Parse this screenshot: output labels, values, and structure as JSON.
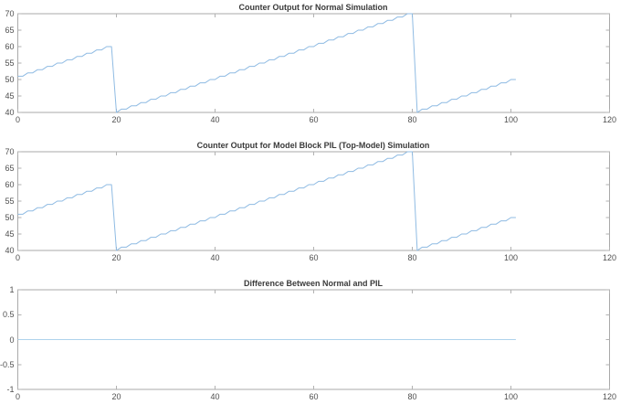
{
  "figure": {
    "background": "#ffffff",
    "axis_color": "#a9a9a9",
    "tick_color": "#b2b2b2",
    "tick_label_color": "#4f4f4f",
    "title_color": "#3a3a3a"
  },
  "chart_data": [
    {
      "type": "line",
      "title": "Counter Output for Normal Simulation",
      "xlabel": "",
      "ylabel": "",
      "xlim": [
        0,
        120
      ],
      "ylim": [
        40,
        70
      ],
      "xticks": [
        0,
        20,
        40,
        60,
        80,
        100,
        120
      ],
      "yticks": [
        40,
        45,
        50,
        55,
        60,
        65,
        70
      ],
      "grid": false,
      "legend": null,
      "line_color": "#8fbbe3",
      "x0": 0,
      "dx": 1,
      "values": [
        51,
        51,
        52,
        52,
        53,
        53,
        54,
        54,
        55,
        55,
        56,
        56,
        57,
        57,
        58,
        58,
        59,
        59,
        60,
        60,
        40,
        41,
        41,
        42,
        42,
        43,
        43,
        44,
        44,
        45,
        45,
        46,
        46,
        47,
        47,
        48,
        48,
        49,
        49,
        50,
        50,
        51,
        51,
        52,
        52,
        53,
        53,
        54,
        54,
        55,
        55,
        56,
        56,
        57,
        57,
        58,
        58,
        59,
        59,
        60,
        60,
        61,
        61,
        62,
        62,
        63,
        63,
        64,
        64,
        65,
        65,
        66,
        66,
        67,
        67,
        68,
        68,
        69,
        69,
        70,
        70,
        40,
        41,
        41,
        42,
        42,
        43,
        43,
        44,
        44,
        45,
        45,
        46,
        46,
        47,
        47,
        48,
        48,
        49,
        49,
        50,
        50
      ]
    },
    {
      "type": "line",
      "title": "Counter Output for Model Block PIL (Top-Model) Simulation",
      "xlabel": "",
      "ylabel": "",
      "xlim": [
        0,
        120
      ],
      "ylim": [
        40,
        70
      ],
      "xticks": [
        0,
        20,
        40,
        60,
        80,
        100,
        120
      ],
      "yticks": [
        40,
        45,
        50,
        55,
        60,
        65,
        70
      ],
      "grid": false,
      "legend": null,
      "line_color": "#8fbbe3",
      "x0": 0,
      "dx": 1,
      "values": [
        51,
        51,
        52,
        52,
        53,
        53,
        54,
        54,
        55,
        55,
        56,
        56,
        57,
        57,
        58,
        58,
        59,
        59,
        60,
        60,
        40,
        41,
        41,
        42,
        42,
        43,
        43,
        44,
        44,
        45,
        45,
        46,
        46,
        47,
        47,
        48,
        48,
        49,
        49,
        50,
        50,
        51,
        51,
        52,
        52,
        53,
        53,
        54,
        54,
        55,
        55,
        56,
        56,
        57,
        57,
        58,
        58,
        59,
        59,
        60,
        60,
        61,
        61,
        62,
        62,
        63,
        63,
        64,
        64,
        65,
        65,
        66,
        66,
        67,
        67,
        68,
        68,
        69,
        69,
        70,
        70,
        40,
        41,
        41,
        42,
        42,
        43,
        43,
        44,
        44,
        45,
        45,
        46,
        46,
        47,
        47,
        48,
        48,
        49,
        49,
        50,
        50
      ]
    },
    {
      "type": "line",
      "title": "Difference Between Normal and PIL",
      "xlabel": "",
      "ylabel": "",
      "xlim": [
        0,
        120
      ],
      "ylim": [
        -1,
        1
      ],
      "xticks": [
        0,
        20,
        40,
        60,
        80,
        100,
        120
      ],
      "yticks": [
        -1,
        -0.5,
        0,
        0.5,
        1
      ],
      "grid": false,
      "legend": null,
      "line_color": "#aed2ec",
      "x": [
        0,
        101
      ],
      "values": [
        0,
        0
      ]
    }
  ]
}
